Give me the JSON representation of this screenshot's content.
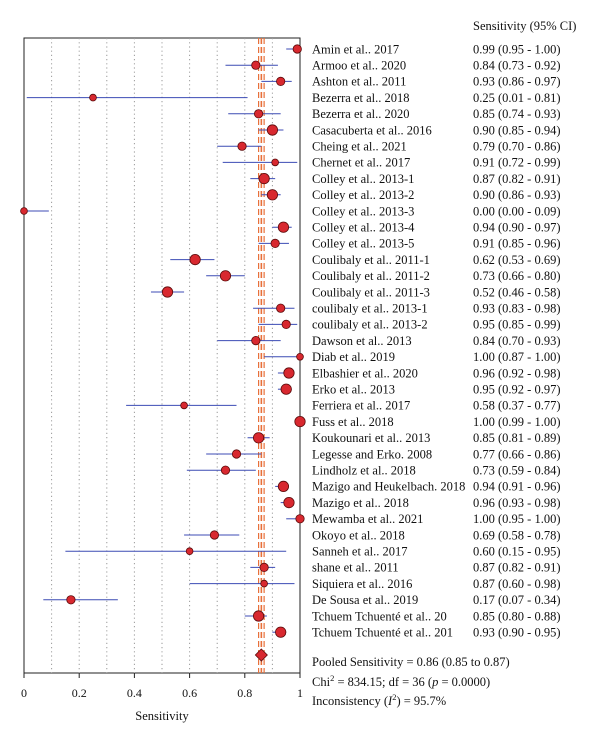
{
  "chart_data": {
    "type": "forest",
    "right_header": "Sensitivity (95% CI)",
    "xlabel": "Sensitivity",
    "xlim": [
      0,
      1
    ],
    "x_ticks": [
      "0",
      "0.2",
      "0.4",
      "0.6",
      "0.8",
      "1"
    ],
    "studies": [
      {
        "name": "Amin et al.. 2017",
        "ci_text": "0.99 (0.95 - 1.00)",
        "est": 0.99,
        "lo": 0.95,
        "hi": 1.0,
        "weight": 2
      },
      {
        "name": "Armoo et al.. 2020",
        "ci_text": "0.84 (0.73 - 0.92)",
        "est": 0.84,
        "lo": 0.73,
        "hi": 0.92,
        "weight": 2
      },
      {
        "name": "Ashton et al.. 2011",
        "ci_text": "0.93 (0.86 - 0.97)",
        "est": 0.93,
        "lo": 0.86,
        "hi": 0.97,
        "weight": 2
      },
      {
        "name": "Bezerra et al.. 2018",
        "ci_text": "0.25 (0.01 - 0.81)",
        "est": 0.25,
        "lo": 0.01,
        "hi": 0.81,
        "weight": 1
      },
      {
        "name": "Bezerra et al.. 2020",
        "ci_text": "0.85 (0.74 - 0.93)",
        "est": 0.85,
        "lo": 0.74,
        "hi": 0.93,
        "weight": 2
      },
      {
        "name": "Casacuberta et al.. 2016",
        "ci_text": "0.90 (0.85 - 0.94)",
        "est": 0.9,
        "lo": 0.85,
        "hi": 0.94,
        "weight": 3
      },
      {
        "name": "Cheing et al.. 2021",
        "ci_text": "0.79 (0.70 - 0.86)",
        "est": 0.79,
        "lo": 0.7,
        "hi": 0.86,
        "weight": 2
      },
      {
        "name": "Chernet et al.. 2017",
        "ci_text": "0.91 (0.72 - 0.99)",
        "est": 0.91,
        "lo": 0.72,
        "hi": 0.99,
        "weight": 1
      },
      {
        "name": "Colley et al.. 2013-1",
        "ci_text": "0.87 (0.82 - 0.91)",
        "est": 0.87,
        "lo": 0.82,
        "hi": 0.91,
        "weight": 3
      },
      {
        "name": "Colley et al.. 2013-2",
        "ci_text": "0.90 (0.86 - 0.93)",
        "est": 0.9,
        "lo": 0.86,
        "hi": 0.93,
        "weight": 3
      },
      {
        "name": "Colley et al.. 2013-3",
        "ci_text": "0.00 (0.00 - 0.09)",
        "est": 0.0,
        "lo": 0.0,
        "hi": 0.09,
        "weight": 1
      },
      {
        "name": "Colley et al.. 2013-4",
        "ci_text": "0.94 (0.90 - 0.97)",
        "est": 0.94,
        "lo": 0.9,
        "hi": 0.97,
        "weight": 3
      },
      {
        "name": "Colley et al.. 2013-5",
        "ci_text": "0.91 (0.85 - 0.96)",
        "est": 0.91,
        "lo": 0.85,
        "hi": 0.96,
        "weight": 2
      },
      {
        "name": "Coulibaly et al.. 2011-1",
        "ci_text": "0.62 (0.53 - 0.69)",
        "est": 0.62,
        "lo": 0.53,
        "hi": 0.69,
        "weight": 3
      },
      {
        "name": "Coulibaly et al.. 2011-2",
        "ci_text": "0.73 (0.66 - 0.80)",
        "est": 0.73,
        "lo": 0.66,
        "hi": 0.8,
        "weight": 3
      },
      {
        "name": "Coulibaly et al.. 2011-3",
        "ci_text": "0.52 (0.46 - 0.58)",
        "est": 0.52,
        "lo": 0.46,
        "hi": 0.58,
        "weight": 3
      },
      {
        "name": "coulibaly et al.. 2013-1",
        "ci_text": "0.93 (0.83 - 0.98)",
        "est": 0.93,
        "lo": 0.83,
        "hi": 0.98,
        "weight": 2
      },
      {
        "name": "coulibaly et al.. 2013-2",
        "ci_text": "0.95 (0.85 - 0.99)",
        "est": 0.95,
        "lo": 0.85,
        "hi": 0.99,
        "weight": 2
      },
      {
        "name": "Dawson et al.. 2013",
        "ci_text": "0.84 (0.70 - 0.93)",
        "est": 0.84,
        "lo": 0.7,
        "hi": 0.93,
        "weight": 2
      },
      {
        "name": "Diab et al.. 2019",
        "ci_text": "1.00 (0.87 - 1.00)",
        "est": 1.0,
        "lo": 0.87,
        "hi": 1.0,
        "weight": 1
      },
      {
        "name": "Elbashier et al.. 2020",
        "ci_text": "0.96 (0.92 - 0.98)",
        "est": 0.96,
        "lo": 0.92,
        "hi": 0.98,
        "weight": 3
      },
      {
        "name": "Erko et al.. 2013",
        "ci_text": "0.95 (0.92 - 0.97)",
        "est": 0.95,
        "lo": 0.92,
        "hi": 0.97,
        "weight": 3
      },
      {
        "name": "Ferriera et al.. 2017",
        "ci_text": "0.58 (0.37 - 0.77)",
        "est": 0.58,
        "lo": 0.37,
        "hi": 0.77,
        "weight": 1
      },
      {
        "name": "Fuss et al.. 2018",
        "ci_text": "1.00 (0.99 - 1.00)",
        "est": 1.0,
        "lo": 0.99,
        "hi": 1.0,
        "weight": 3
      },
      {
        "name": "Koukounari et al.. 2013",
        "ci_text": "0.85 (0.81 - 0.89)",
        "est": 0.85,
        "lo": 0.81,
        "hi": 0.89,
        "weight": 3
      },
      {
        "name": "Legesse and Erko. 2008",
        "ci_text": "0.77 (0.66 - 0.86)",
        "est": 0.77,
        "lo": 0.66,
        "hi": 0.86,
        "weight": 2
      },
      {
        "name": "Lindholz et al.. 2018",
        "ci_text": "0.73 (0.59 - 0.84)",
        "est": 0.73,
        "lo": 0.59,
        "hi": 0.84,
        "weight": 2
      },
      {
        "name": "Mazigo and Heukelbach. 2018",
        "ci_text": "0.94 (0.91 - 0.96)",
        "est": 0.94,
        "lo": 0.91,
        "hi": 0.96,
        "weight": 3
      },
      {
        "name": "Mazigo et al.. 2018",
        "ci_text": "0.96 (0.93 - 0.98)",
        "est": 0.96,
        "lo": 0.93,
        "hi": 0.98,
        "weight": 3
      },
      {
        "name": "Mewamba et al.. 2021",
        "ci_text": "1.00 (0.95 - 1.00)",
        "est": 1.0,
        "lo": 0.95,
        "hi": 1.0,
        "weight": 2
      },
      {
        "name": "Okoyo et al.. 2018",
        "ci_text": "0.69 (0.58 - 0.78)",
        "est": 0.69,
        "lo": 0.58,
        "hi": 0.78,
        "weight": 2
      },
      {
        "name": "Sanneh et al.. 2017",
        "ci_text": "0.60 (0.15 - 0.95)",
        "est": 0.6,
        "lo": 0.15,
        "hi": 0.95,
        "weight": 1
      },
      {
        "name": "shane et al.. 2011",
        "ci_text": "0.87 (0.82 - 0.91)",
        "est": 0.87,
        "lo": 0.82,
        "hi": 0.91,
        "weight": 2
      },
      {
        "name": "Siquiera et al.. 2016",
        "ci_text": "0.87 (0.60 - 0.98)",
        "est": 0.87,
        "lo": 0.6,
        "hi": 0.98,
        "weight": 1
      },
      {
        "name": "De Sousa et al.. 2019",
        "ci_text": "0.17 (0.07 - 0.34)",
        "est": 0.17,
        "lo": 0.07,
        "hi": 0.34,
        "weight": 2
      },
      {
        "name": "Tchuem Tchuenté et al.. 20",
        "ci_text": "0.85 (0.80 - 0.88)",
        "est": 0.85,
        "lo": 0.8,
        "hi": 0.88,
        "weight": 3
      },
      {
        "name": "Tchuem Tchuenté et al.. 201",
        "ci_text": "0.93 (0.90 - 0.95)",
        "est": 0.93,
        "lo": 0.9,
        "hi": 0.95,
        "weight": 3
      }
    ],
    "pooled": {
      "est": 0.86,
      "lo": 0.85,
      "hi": 0.87
    },
    "summary_lines": [
      [
        {
          "t": "Pooled Sensitivity = 0.86 (0.85 to 0.87)"
        }
      ],
      [
        {
          "t": "Chi"
        },
        {
          "t": "2",
          "sup": true
        },
        {
          "t": " = 834.15; df = 36 ("
        },
        {
          "t": "p",
          "it": true
        },
        {
          "t": " = 0.0000)"
        }
      ],
      [
        {
          "t": "Inconsistency ("
        },
        {
          "t": "I",
          "it": true
        },
        {
          "t": "2",
          "sup": true
        },
        {
          "t": ") = 95.7%"
        }
      ]
    ],
    "colors": {
      "marker_fill": "#d8282f",
      "marker_stroke": "#5a0a0a",
      "ci_line": "#3c4bb4",
      "pooled_line": "#e8703a",
      "frame": "#222222",
      "grid": "#9a9a9a"
    }
  }
}
